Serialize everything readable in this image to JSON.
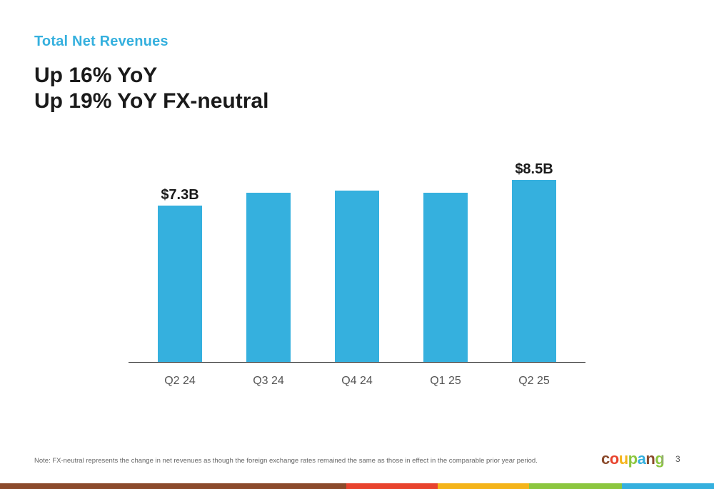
{
  "header": {
    "kicker": "Total Net Revenues",
    "line1": "Up 16% YoY",
    "line2": "Up 19% YoY FX-neutral"
  },
  "chart_data": {
    "type": "bar",
    "categories": [
      "Q2 24",
      "Q3 24",
      "Q4 24",
      "Q1 25",
      "Q2 25"
    ],
    "values": [
      7.3,
      7.9,
      8.0,
      7.9,
      8.5
    ],
    "data_labels": [
      "$7.3B",
      "",
      "",
      "",
      "$8.5B"
    ],
    "unit": "$B",
    "ylim": [
      0,
      8.5
    ],
    "bar_color": "#35b0de",
    "grid": false,
    "legend": "none"
  },
  "footer": {
    "note": "Note: FX-neutral represents the change in net revenues as though the foreign exchange rates remained the same as those in effect in the comparable prior year period.",
    "logo_letters": [
      "c",
      "o",
      "u",
      "p",
      "a",
      "n",
      "g"
    ],
    "logo_colors": [
      "#8b4a2b",
      "#e8432e",
      "#f4b41a",
      "#8cc63f",
      "#35b0de",
      "#8b4a2b",
      "#8cc63f"
    ],
    "separator": "|",
    "page_number": "3"
  },
  "bottom_bar_colors": [
    "#8b4a2b",
    "#e8432e",
    "#f4b41a",
    "#8cc63f",
    "#35b0de"
  ]
}
